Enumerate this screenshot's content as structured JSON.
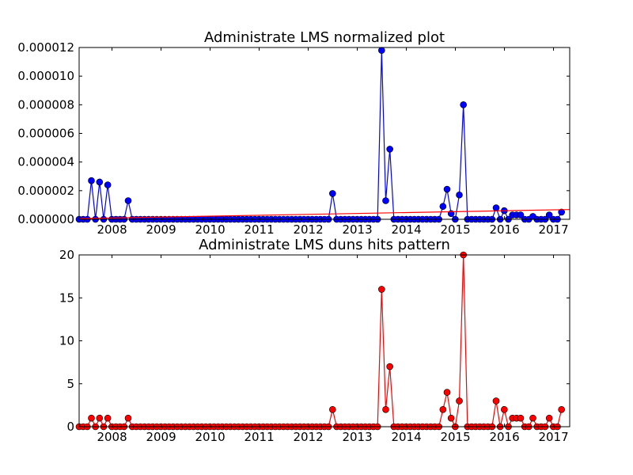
{
  "chart_data": [
    {
      "type": "line",
      "title": "Administrate LMS normalized plot",
      "xlabel": "",
      "ylabel": "",
      "xlim": [
        2007.33,
        2017.33
      ],
      "ylim": [
        0,
        1.2e-05
      ],
      "x_ticks": [
        2008,
        2009,
        2010,
        2011,
        2012,
        2013,
        2014,
        2015,
        2016,
        2017
      ],
      "x_tick_labels": [
        "2008",
        "2009",
        "2010",
        "2011",
        "2012",
        "2013",
        "2014",
        "2015",
        "2016",
        "2017"
      ],
      "y_ticks": [
        0,
        2e-06,
        4e-06,
        6e-06,
        8e-06,
        1e-05,
        1.2e-05
      ],
      "y_tick_labels": [
        "0.000000",
        "0.000002",
        "0.000004",
        "0.000006",
        "0.000008",
        "0.000010",
        "0.000012"
      ],
      "grid": false,
      "series": [
        {
          "color": "#0000ff",
          "marker": "circle",
          "x_start": 2007.33,
          "x_step_months": 1,
          "values": [
            0,
            0,
            0,
            2.7e-06,
            0,
            2.6e-06,
            0,
            2.4e-06,
            0,
            0,
            0,
            0,
            1.3e-06,
            0,
            0,
            0,
            0,
            0,
            0,
            0,
            0,
            0,
            0,
            0,
            0,
            0,
            0,
            0,
            0,
            0,
            0,
            0,
            0,
            0,
            0,
            0,
            0,
            0,
            0,
            0,
            0,
            0,
            0,
            0,
            0,
            0,
            0,
            0,
            0,
            0,
            0,
            0,
            0,
            0,
            0,
            0,
            0,
            0,
            0,
            0,
            0,
            0,
            1.8e-06,
            0,
            0,
            0,
            0,
            0,
            0,
            0,
            0,
            0,
            0,
            0,
            1.18e-05,
            1.3e-06,
            4.9e-06,
            0,
            0,
            0,
            0,
            0,
            0,
            0,
            0,
            0,
            0,
            0,
            0,
            9e-07,
            2.1e-06,
            4e-07,
            0,
            1.7e-06,
            8e-06,
            0,
            0,
            0,
            0,
            0,
            0,
            0,
            8e-07,
            0,
            6e-07,
            0,
            3e-07,
            3e-07,
            3e-07,
            0,
            0,
            2e-07,
            0,
            0,
            0,
            3e-07,
            0,
            0,
            5e-07
          ]
        },
        {
          "color": "#ff0000",
          "marker": "none",
          "kind": "trend",
          "x": [
            2007.33,
            2017.33
          ],
          "values": [
            5e-08,
            6.8e-07
          ]
        }
      ]
    },
    {
      "type": "line",
      "title": "Administrate LMS duns hits pattern",
      "xlabel": "",
      "ylabel": "",
      "xlim": [
        2007.33,
        2017.33
      ],
      "ylim": [
        0,
        20
      ],
      "x_ticks": [
        2008,
        2009,
        2010,
        2011,
        2012,
        2013,
        2014,
        2015,
        2016,
        2017
      ],
      "x_tick_labels": [
        "2008",
        "2009",
        "2010",
        "2011",
        "2012",
        "2013",
        "2014",
        "2015",
        "2016",
        "2017"
      ],
      "y_ticks": [
        0,
        5,
        10,
        15,
        20
      ],
      "y_tick_labels": [
        "0",
        "5",
        "10",
        "15",
        "20"
      ],
      "grid": false,
      "series": [
        {
          "color": "#ff0000",
          "marker": "circle",
          "x_start": 2007.33,
          "x_step_months": 1,
          "values": [
            0,
            0,
            0,
            1,
            0,
            1,
            0,
            1,
            0,
            0,
            0,
            0,
            1,
            0,
            0,
            0,
            0,
            0,
            0,
            0,
            0,
            0,
            0,
            0,
            0,
            0,
            0,
            0,
            0,
            0,
            0,
            0,
            0,
            0,
            0,
            0,
            0,
            0,
            0,
            0,
            0,
            0,
            0,
            0,
            0,
            0,
            0,
            0,
            0,
            0,
            0,
            0,
            0,
            0,
            0,
            0,
            0,
            0,
            0,
            0,
            0,
            0,
            2,
            0,
            0,
            0,
            0,
            0,
            0,
            0,
            0,
            0,
            0,
            0,
            16,
            2,
            7,
            0,
            0,
            0,
            0,
            0,
            0,
            0,
            0,
            0,
            0,
            0,
            0,
            2,
            4,
            1,
            0,
            3,
            20,
            0,
            0,
            0,
            0,
            0,
            0,
            0,
            3,
            0,
            2,
            0,
            1,
            1,
            1,
            0,
            0,
            1,
            0,
            0,
            0,
            1,
            0,
            0,
            2
          ]
        }
      ]
    }
  ]
}
